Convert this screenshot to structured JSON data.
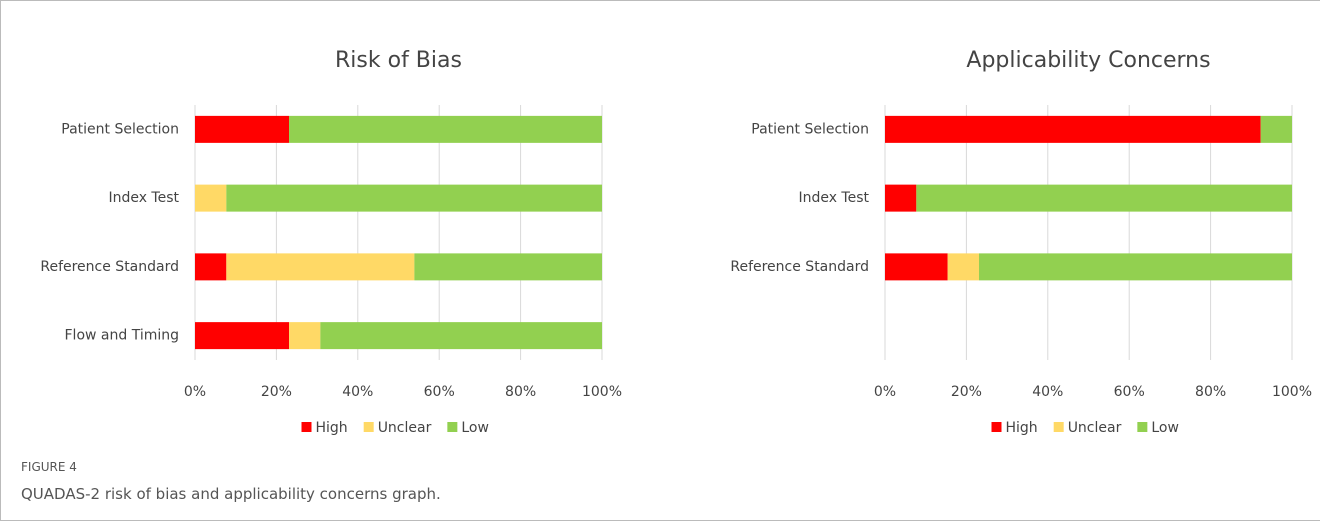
{
  "chart_data": [
    {
      "type": "stacked-bar-horizontal",
      "title": "Risk of Bias",
      "categories": [
        "Patient Selection",
        "Index Test",
        "Reference Standard",
        "Flow and Timing"
      ],
      "series": [
        {
          "name": "High",
          "color": "#ff0000",
          "values": [
            23.1,
            0,
            7.7,
            23.1
          ]
        },
        {
          "name": "Unclear",
          "color": "#ffd966",
          "values": [
            0,
            7.7,
            46.2,
            7.7
          ]
        },
        {
          "name": "Low",
          "color": "#92d050",
          "values": [
            76.9,
            92.3,
            46.1,
            69.2
          ]
        }
      ],
      "xlim": [
        0,
        100
      ],
      "xticks": [
        {
          "value": 0,
          "label": "0%"
        },
        {
          "value": 20,
          "label": "20%"
        },
        {
          "value": 40,
          "label": "40%"
        },
        {
          "value": 60,
          "label": "60%"
        },
        {
          "value": 80,
          "label": "80%"
        },
        {
          "value": 100,
          "label": "100%"
        }
      ],
      "grid": true,
      "legend": "bottom"
    },
    {
      "type": "stacked-bar-horizontal",
      "title": "Applicability Concerns",
      "categories": [
        "Patient Selection",
        "Index Test",
        "Reference Standard",
        null
      ],
      "series": [
        {
          "name": "High",
          "color": "#ff0000",
          "values": [
            92.3,
            7.7,
            15.4,
            null
          ]
        },
        {
          "name": "Unclear",
          "color": "#ffd966",
          "values": [
            0,
            0,
            7.7,
            null
          ]
        },
        {
          "name": "Low",
          "color": "#92d050",
          "values": [
            7.7,
            92.3,
            76.9,
            null
          ]
        }
      ],
      "xlim": [
        0,
        100
      ],
      "xticks": [
        {
          "value": 0,
          "label": "0%"
        },
        {
          "value": 20,
          "label": "20%"
        },
        {
          "value": 40,
          "label": "40%"
        },
        {
          "value": 60,
          "label": "60%"
        },
        {
          "value": 80,
          "label": "80%"
        },
        {
          "value": 100,
          "label": "100%"
        }
      ],
      "grid": true,
      "legend": "bottom"
    }
  ],
  "caption": {
    "label": "FIGURE 4",
    "text": "QUADAS-2 risk of bias and applicability concerns graph."
  }
}
